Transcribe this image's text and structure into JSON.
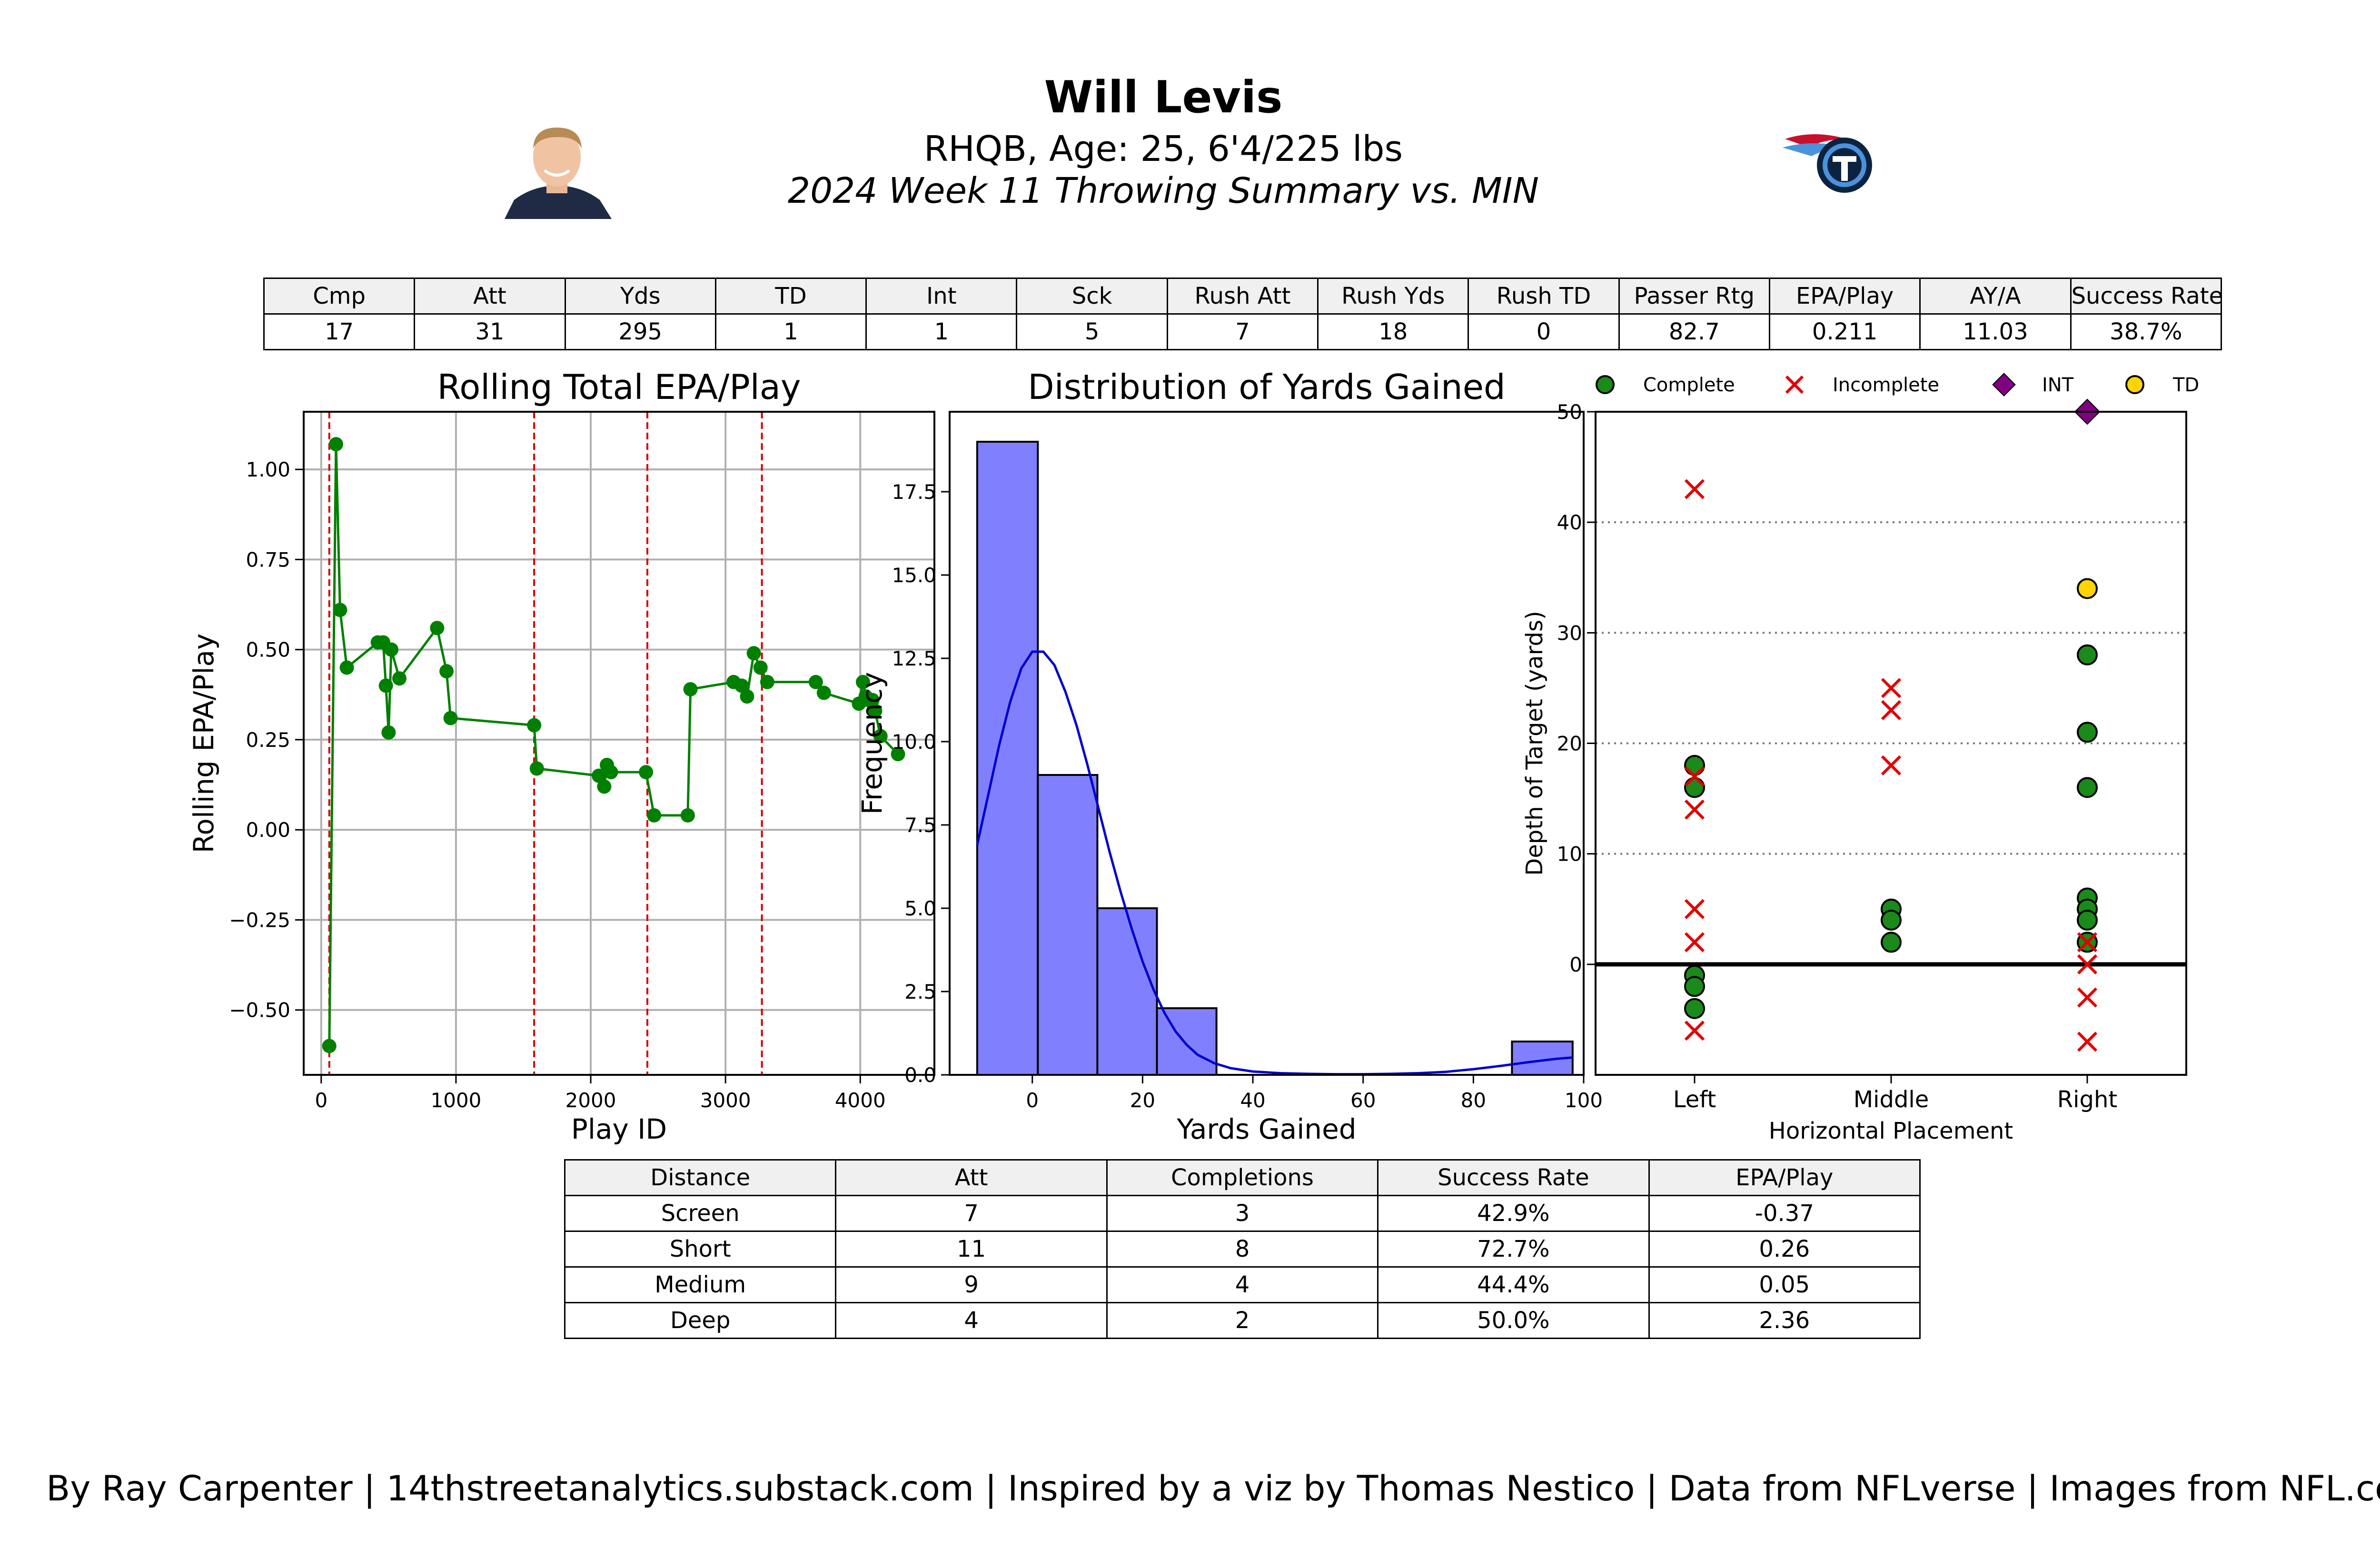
{
  "header": {
    "player_name": "Will Levis",
    "bio": "RHQB, Age: 25, 6'4/225 lbs",
    "summary": "2024 Week 11 Throwing Summary vs. MIN"
  },
  "colors": {
    "epa_line": "#008000",
    "epa_marker": "#008000",
    "drive_line": "#d40000",
    "hist_fill": "#8080ff",
    "kde_line": "#0000cc",
    "complete": "#1a8a1a",
    "incomplete": "#e00000",
    "int": "#800080",
    "td": "#ffd400"
  },
  "stats_table": {
    "headers": [
      "Cmp",
      "Att",
      "Yds",
      "TD",
      "Int",
      "Sck",
      "Rush Att",
      "Rush Yds",
      "Rush TD",
      "Passer Rtg",
      "EPA/Play",
      "AY/A",
      "Success Rate"
    ],
    "values": [
      "17",
      "31",
      "295",
      "1",
      "1",
      "5",
      "7",
      "18",
      "0",
      "82.7",
      "0.211",
      "11.03",
      "38.7%"
    ]
  },
  "distance_table": {
    "headers": [
      "Distance",
      "Att",
      "Completions",
      "Success Rate",
      "EPA/Play"
    ],
    "rows": [
      [
        "Screen",
        "7",
        "3",
        "42.9%",
        "-0.37"
      ],
      [
        "Short",
        "11",
        "8",
        "72.7%",
        "0.26"
      ],
      [
        "Medium",
        "9",
        "4",
        "44.4%",
        "0.05"
      ],
      [
        "Deep",
        "4",
        "2",
        "50.0%",
        "2.36"
      ]
    ]
  },
  "credit": "By Ray Carpenter | 14thstreetanalytics.substack.com | Inspired by a viz by Thomas Nestico | Data from NFLverse | Images from NFL.com",
  "chart_data": [
    {
      "type": "line",
      "title": "Rolling Total EPA/Play",
      "xlabel": "Play ID",
      "ylabel": "Rolling EPA/Play",
      "xlim": [
        -130,
        4550
      ],
      "ylim": [
        -0.68,
        1.16
      ],
      "xticks": [
        0,
        1000,
        2000,
        3000,
        4000
      ],
      "yticks": [
        -0.5,
        -0.25,
        0.0,
        0.25,
        0.5,
        0.75,
        1.0
      ],
      "ytick_labels": [
        "−0.50",
        "−0.25",
        "0.00",
        "0.25",
        "0.50",
        "0.75",
        "1.00"
      ],
      "grid": true,
      "drive_markers": [
        60,
        1580,
        2420,
        3270
      ],
      "points": [
        [
          60,
          -0.6
        ],
        [
          110,
          1.07
        ],
        [
          140,
          0.61
        ],
        [
          190,
          0.45
        ],
        [
          420,
          0.52
        ],
        [
          460,
          0.52
        ],
        [
          480,
          0.4
        ],
        [
          500,
          0.27
        ],
        [
          520,
          0.5
        ],
        [
          580,
          0.42
        ],
        [
          860,
          0.56
        ],
        [
          930,
          0.44
        ],
        [
          960,
          0.31
        ],
        [
          1580,
          0.29
        ],
        [
          1600,
          0.17
        ],
        [
          2060,
          0.15
        ],
        [
          2100,
          0.12
        ],
        [
          2120,
          0.18
        ],
        [
          2150,
          0.16
        ],
        [
          2410,
          0.16
        ],
        [
          2470,
          0.04
        ],
        [
          2720,
          0.04
        ],
        [
          2740,
          0.39
        ],
        [
          3060,
          0.41
        ],
        [
          3120,
          0.4
        ],
        [
          3160,
          0.37
        ],
        [
          3210,
          0.49
        ],
        [
          3260,
          0.45
        ],
        [
          3310,
          0.41
        ],
        [
          3670,
          0.41
        ],
        [
          3730,
          0.38
        ],
        [
          3990,
          0.35
        ],
        [
          4020,
          0.41
        ],
        [
          4040,
          0.37
        ],
        [
          4060,
          0.36
        ],
        [
          4090,
          0.36
        ],
        [
          4110,
          0.33
        ],
        [
          4150,
          0.26
        ],
        [
          4280,
          0.21
        ]
      ]
    },
    {
      "type": "bar",
      "title": "Distribution of Yards Gained",
      "xlabel": "Yards Gained",
      "ylabel": "Frequency",
      "xlim": [
        -15,
        100
      ],
      "ylim": [
        0,
        19.9
      ],
      "xticks": [
        0,
        20,
        40,
        60,
        80,
        100
      ],
      "yticks": [
        0.0,
        2.5,
        5.0,
        7.5,
        10.0,
        12.5,
        15.0,
        17.5
      ],
      "bins": [
        {
          "x0": -10,
          "x1": 1,
          "count": 19
        },
        {
          "x0": 1,
          "x1": 11.8,
          "count": 9
        },
        {
          "x0": 11.8,
          "x1": 22.6,
          "count": 5
        },
        {
          "x0": 22.6,
          "x1": 33.4,
          "count": 2
        },
        {
          "x0": 87,
          "x1": 98,
          "count": 1
        }
      ],
      "kde": [
        [
          -10,
          6.9
        ],
        [
          -8,
          8.4
        ],
        [
          -6,
          9.9
        ],
        [
          -4,
          11.2
        ],
        [
          -2,
          12.2
        ],
        [
          0,
          12.7
        ],
        [
          2,
          12.7
        ],
        [
          4,
          12.3
        ],
        [
          6,
          11.5
        ],
        [
          8,
          10.5
        ],
        [
          10,
          9.3
        ],
        [
          12,
          8.0
        ],
        [
          14,
          6.7
        ],
        [
          16,
          5.5
        ],
        [
          18,
          4.4
        ],
        [
          20,
          3.4
        ],
        [
          22,
          2.55
        ],
        [
          24,
          1.85
        ],
        [
          26,
          1.3
        ],
        [
          28,
          0.9
        ],
        [
          30,
          0.6
        ],
        [
          33,
          0.35
        ],
        [
          36,
          0.2
        ],
        [
          40,
          0.1
        ],
        [
          45,
          0.05
        ],
        [
          50,
          0.03
        ],
        [
          55,
          0.02
        ],
        [
          60,
          0.02
        ],
        [
          65,
          0.03
        ],
        [
          70,
          0.05
        ],
        [
          75,
          0.09
        ],
        [
          80,
          0.17
        ],
        [
          85,
          0.27
        ],
        [
          90,
          0.38
        ],
        [
          95,
          0.48
        ],
        [
          98,
          0.52
        ]
      ]
    },
    {
      "type": "scatter",
      "xlabel": "Horizontal Placement",
      "ylabel": "Depth of Target (yards)",
      "categories": [
        "Left",
        "Middle",
        "Right"
      ],
      "ylim": [
        -10,
        50
      ],
      "yticks": [
        0,
        10,
        20,
        30,
        40,
        50
      ],
      "grid": "horizontal-dotted",
      "legend": {
        "placement": "top",
        "entries": [
          {
            "name": "Complete",
            "marker": "circle"
          },
          {
            "name": "Incomplete",
            "marker": "x"
          },
          {
            "name": "INT",
            "marker": "diamond"
          },
          {
            "name": "TD",
            "marker": "circle"
          }
        ]
      },
      "series": [
        {
          "name": "Complete",
          "points": [
            [
              "Left",
              18
            ],
            [
              "Left",
              16
            ],
            [
              "Left",
              -1
            ],
            [
              "Left",
              -2
            ],
            [
              "Left",
              -4
            ],
            [
              "Middle",
              5
            ],
            [
              "Middle",
              4
            ],
            [
              "Middle",
              2
            ],
            [
              "Right",
              28
            ],
            [
              "Right",
              21
            ],
            [
              "Right",
              16
            ],
            [
              "Right",
              6
            ],
            [
              "Right",
              5
            ],
            [
              "Right",
              4
            ],
            [
              "Right",
              2
            ]
          ]
        },
        {
          "name": "Incomplete",
          "points": [
            [
              "Left",
              43
            ],
            [
              "Left",
              17
            ],
            [
              "Left",
              14
            ],
            [
              "Left",
              5
            ],
            [
              "Left",
              2
            ],
            [
              "Left",
              -6
            ],
            [
              "Middle",
              25
            ],
            [
              "Middle",
              23
            ],
            [
              "Middle",
              18
            ],
            [
              "Right",
              2
            ],
            [
              "Right",
              0
            ],
            [
              "Right",
              -3
            ],
            [
              "Right",
              -7
            ]
          ]
        },
        {
          "name": "INT",
          "points": [
            [
              "Right",
              50
            ]
          ]
        },
        {
          "name": "TD",
          "points": [
            [
              "Right",
              34
            ]
          ]
        }
      ]
    }
  ]
}
